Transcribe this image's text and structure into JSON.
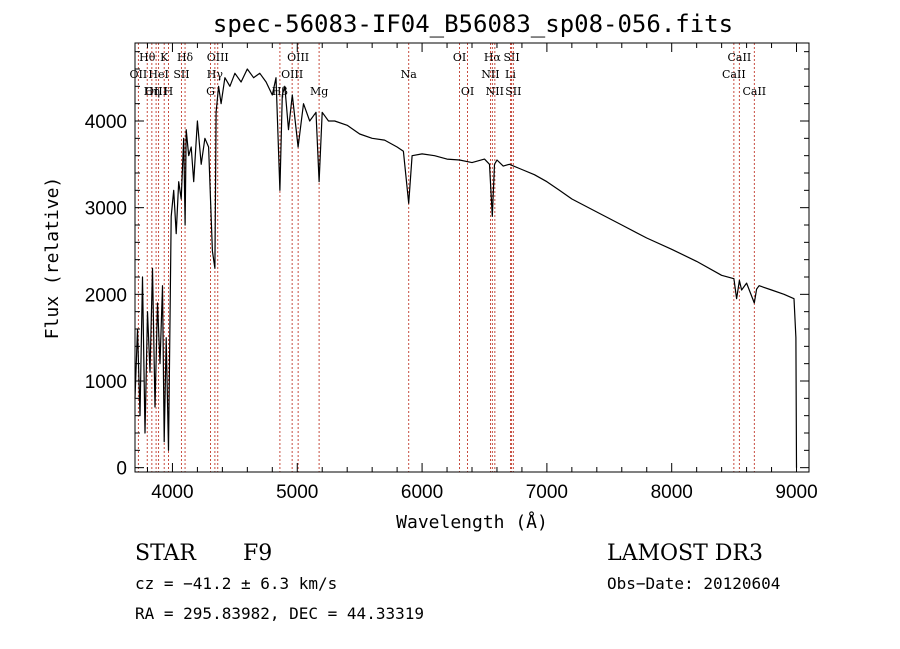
{
  "chart_data": {
    "type": "line",
    "title": "spec-56083-IF04_B56083_sp08-056.fits",
    "xlabel": "Wavelength (Å)",
    "ylabel": "Flux (relative)",
    "xlim": [
      3700,
      9100
    ],
    "ylim": [
      -50,
      4900
    ],
    "x_ticks": [
      4000,
      5000,
      6000,
      7000,
      8000,
      9000
    ],
    "y_ticks": [
      0,
      1000,
      2000,
      3000,
      4000
    ],
    "series": [
      {
        "name": "spectrum",
        "x": [
          3700,
          3720,
          3740,
          3760,
          3780,
          3800,
          3820,
          3840,
          3860,
          3880,
          3900,
          3920,
          3934,
          3950,
          3968,
          3990,
          4010,
          4030,
          4050,
          4070,
          4090,
          4101,
          4110,
          4130,
          4150,
          4170,
          4200,
          4230,
          4260,
          4290,
          4320,
          4340,
          4350,
          4370,
          4390,
          4420,
          4460,
          4500,
          4550,
          4600,
          4650,
          4700,
          4750,
          4800,
          4830,
          4861,
          4880,
          4900,
          4930,
          4960,
          5007,
          5050,
          5100,
          5150,
          5175,
          5200,
          5250,
          5300,
          5400,
          5500,
          5600,
          5700,
          5800,
          5850,
          5893,
          5920,
          6000,
          6100,
          6200,
          6300,
          6400,
          6500,
          6540,
          6563,
          6580,
          6600,
          6650,
          6700,
          6800,
          6900,
          7000,
          7100,
          7200,
          7400,
          7600,
          7800,
          8000,
          8200,
          8400,
          8498,
          8520,
          8542,
          8560,
          8600,
          8662,
          8680,
          8700,
          8800,
          8900,
          8980,
          8995,
          9000
        ],
        "y": [
          800,
          1600,
          600,
          2200,
          400,
          1800,
          1100,
          2300,
          700,
          1900,
          1200,
          2100,
          300,
          1500,
          200,
          2900,
          3200,
          2700,
          3300,
          3100,
          3800,
          2800,
          3900,
          3600,
          3700,
          3300,
          4000,
          3500,
          3800,
          3700,
          2500,
          2300,
          4100,
          4400,
          4200,
          4500,
          4400,
          4550,
          4450,
          4600,
          4500,
          4550,
          4450,
          4300,
          4500,
          3200,
          4300,
          4400,
          3900,
          4300,
          3700,
          4200,
          4000,
          4100,
          3300,
          4100,
          4000,
          4000,
          3950,
          3850,
          3800,
          3780,
          3700,
          3650,
          3050,
          3600,
          3620,
          3600,
          3560,
          3550,
          3520,
          3560,
          3500,
          2900,
          3500,
          3550,
          3480,
          3500,
          3440,
          3380,
          3300,
          3200,
          3100,
          2950,
          2800,
          2650,
          2520,
          2380,
          2220,
          2180,
          1950,
          2160,
          2050,
          2130,
          1900,
          2060,
          2100,
          2050,
          2000,
          1950,
          1500,
          0
        ]
      }
    ],
    "line_markers": [
      {
        "label": "Hθ",
        "wavelength": 3798,
        "row": 1
      },
      {
        "label": "OII",
        "wavelength": 3727,
        "row": 2
      },
      {
        "label": "OIII",
        "wavelength": 3869,
        "row": 3
      },
      {
        "label": "K",
        "wavelength": 3934,
        "row": 1
      },
      {
        "label": "HeI",
        "wavelength": 3889,
        "row": 2
      },
      {
        "label": "Hη",
        "wavelength": 3835,
        "row": 3
      },
      {
        "label": "Hδ",
        "wavelength": 4101,
        "row": 1
      },
      {
        "label": "SII",
        "wavelength": 4072,
        "row": 2
      },
      {
        "label": "H",
        "wavelength": 3968,
        "row": 3
      },
      {
        "label": "OIII",
        "wavelength": 4363,
        "row": 1
      },
      {
        "label": "Hγ",
        "wavelength": 4340,
        "row": 2
      },
      {
        "label": "G",
        "wavelength": 4305,
        "row": 3
      },
      {
        "label": "OIII",
        "wavelength": 5007,
        "row": 1
      },
      {
        "label": "OIII",
        "wavelength": 4959,
        "row": 2
      },
      {
        "label": "Hβ",
        "wavelength": 4861,
        "row": 3
      },
      {
        "label": "Mg",
        "wavelength": 5175,
        "row": 3
      },
      {
        "label": "Na",
        "wavelength": 5893,
        "row": 2
      },
      {
        "label": "OI",
        "wavelength": 6300,
        "row": 1
      },
      {
        "label": "OI",
        "wavelength": 6364,
        "row": 3
      },
      {
        "label": "Hα",
        "wavelength": 6563,
        "row": 1
      },
      {
        "label": "NII",
        "wavelength": 6548,
        "row": 2
      },
      {
        "label": "NII",
        "wavelength": 6583,
        "row": 3
      },
      {
        "label": "SII",
        "wavelength": 6717,
        "row": 1
      },
      {
        "label": "Li",
        "wavelength": 6708,
        "row": 2
      },
      {
        "label": "SII",
        "wavelength": 6731,
        "row": 3
      },
      {
        "label": "CaII",
        "wavelength": 8542,
        "row": 1
      },
      {
        "label": "CaII",
        "wavelength": 8498,
        "row": 2
      },
      {
        "label": "CaII",
        "wavelength": 8662,
        "row": 3
      }
    ]
  },
  "info": {
    "class": "STAR",
    "subclass": "F9",
    "survey": "LAMOST DR3",
    "cz": "cz = −41.2 ± 6.3 km/s",
    "obs_date": "Obs−Date: 20120604",
    "coords": "RA = 295.83982, DEC =  44.33319"
  },
  "colors": {
    "axis": "#000000",
    "spectrum": "#000000",
    "marker": "#c0392b"
  }
}
